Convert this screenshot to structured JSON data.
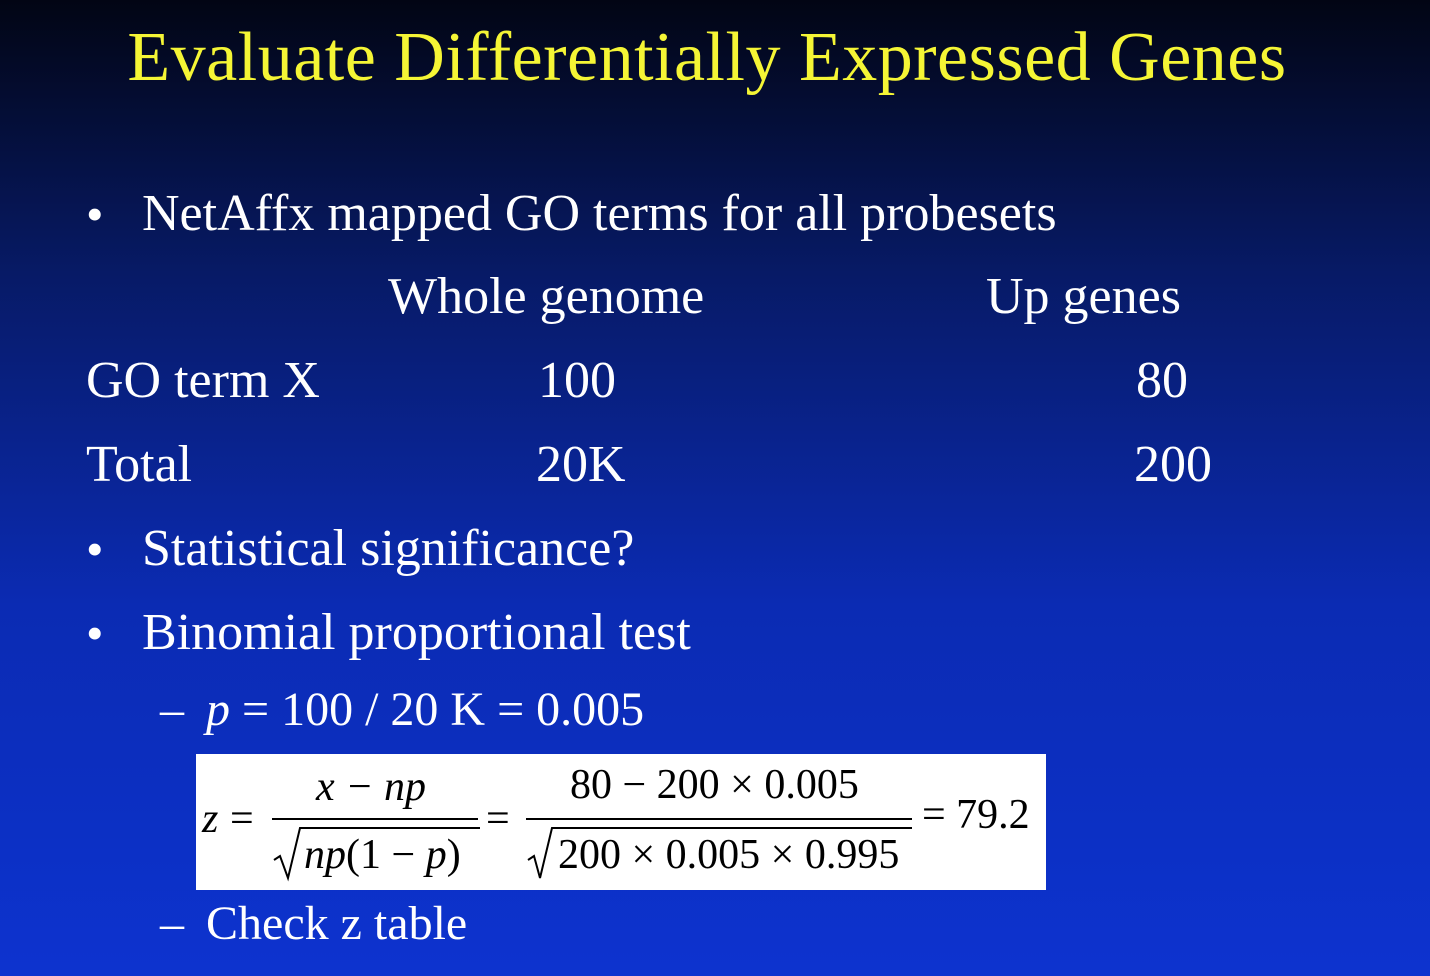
{
  "slide": {
    "title": "Evaluate Differentially Expressed Genes",
    "bullets": [
      "NetAffx mapped GO terms for all probesets",
      "Statistical significance?",
      "Binomial proportional test"
    ],
    "bullet_symbol": "•",
    "dash_symbol": "–",
    "table": {
      "headers": [
        "Whole genome",
        "Up genes"
      ],
      "rows": [
        {
          "label": "GO term X",
          "whole": "100",
          "up": "80"
        },
        {
          "label": "Total",
          "whole": "20K",
          "up": "200"
        }
      ]
    },
    "sub_items": {
      "p_var": "p",
      "p_expr": " = 100 / 20 K = 0.005",
      "check": "Check z table"
    },
    "equation": {
      "lhs": "z",
      "equals": "=",
      "num1": "x − np",
      "den1_np": "np",
      "den1_rest": "(1 − ",
      "den1_p": "p",
      "den1_close": ")",
      "num2": "80 − 200 × 0.005",
      "den2": "200 × 0.005 × 0.995",
      "result": "= 79.2",
      "sqrt_symbol": "√"
    },
    "colors": {
      "title": "#f5f535",
      "text": "#ffffff",
      "background_top": "#020514",
      "background_bottom": "#0d33cf"
    }
  }
}
